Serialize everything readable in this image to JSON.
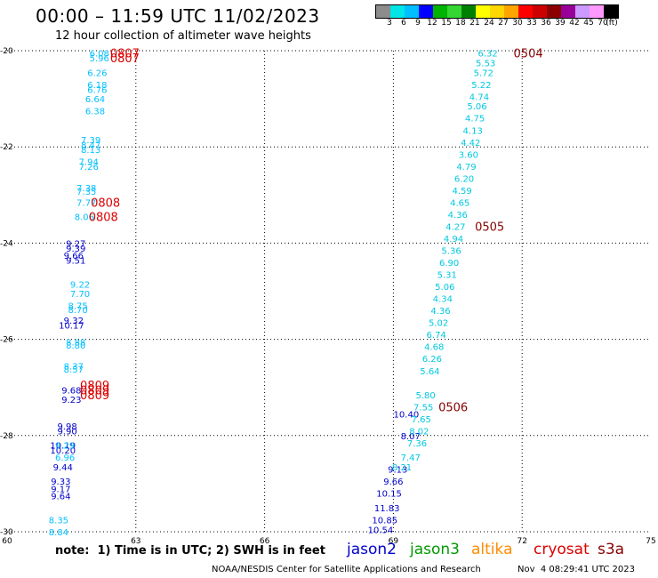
{
  "title": "00:00 – 11:59 UTC 11/02/2023",
  "subtitle": "12 hour collection of altimeter wave heights",
  "colorbar": {
    "labels": [
      "3",
      "6",
      "9",
      "12",
      "15",
      "18",
      "21",
      "24",
      "27",
      "30",
      "33",
      "36",
      "39",
      "42",
      "45",
      "70",
      "(ft)"
    ],
    "colors": [
      "#8c8c8c",
      "#00e5e5",
      "#00bfff",
      "#0000ff",
      "#00b300",
      "#33d633",
      "#008000",
      "#ffff00",
      "#ffd700",
      "#ffa500",
      "#ff0000",
      "#cc0000",
      "#8b0000",
      "#990099",
      "#cc99ff",
      "#ff99ff",
      "#000000"
    ]
  },
  "note": "note:  1) Time is in UTC; 2) SWH is in feet",
  "satellites": [
    {
      "name": "jason2",
      "color": "#0000cc"
    },
    {
      "name": "jason3",
      "color": "#009900"
    },
    {
      "name": "altika",
      "color": "#ff8c00"
    },
    {
      "name": "cryosat",
      "color": "#dd0000"
    },
    {
      "name": "s3a",
      "color": "#880000"
    }
  ],
  "footer_org": "NOAA/NESDIS Center for Satellite Applications and Research",
  "footer_timestamp": "Nov  4 08:29:41 UTC 2023",
  "chart_data": {
    "type": "scatter",
    "xlim": [
      60,
      75
    ],
    "ylim": [
      -30,
      -20
    ],
    "x_ticks": [
      "60",
      "63",
      "66",
      "69",
      "72",
      "75"
    ],
    "y_ticks": [
      "-20",
      "-22",
      "-24",
      "-26",
      "-28",
      "-30"
    ],
    "grid": true,
    "series": [
      {
        "name": "jason2",
        "color": "#0000cc",
        "points": [
          {
            "x": 61.6,
            "y": -24.0,
            "label": "9.27"
          },
          {
            "x": 61.6,
            "y": -24.1,
            "label": "9.39"
          },
          {
            "x": 61.55,
            "y": -24.25,
            "label": "9.66"
          },
          {
            "x": 61.6,
            "y": -24.35,
            "label": "9.51"
          },
          {
            "x": 61.55,
            "y": -25.6,
            "label": "9.32"
          },
          {
            "x": 61.5,
            "y": -25.7,
            "label": "10.17"
          },
          {
            "x": 61.5,
            "y": -27.05,
            "label": "9.68"
          },
          {
            "x": 61.5,
            "y": -27.25,
            "label": "9.23"
          },
          {
            "x": 61.4,
            "y": -27.8,
            "label": "9.98"
          },
          {
            "x": 61.4,
            "y": -27.9,
            "label": "9.90"
          },
          {
            "x": 61.3,
            "y": -28.2,
            "label": "10.19"
          },
          {
            "x": 61.3,
            "y": -28.3,
            "label": "10.20"
          },
          {
            "x": 61.3,
            "y": -28.65,
            "label": "9.44"
          },
          {
            "x": 61.25,
            "y": -28.95,
            "label": "9.33"
          },
          {
            "x": 61.25,
            "y": -29.1,
            "label": "9.17"
          },
          {
            "x": 61.25,
            "y": -29.25,
            "label": "9.64"
          },
          {
            "x": 69.3,
            "y": -27.55,
            "label": "10.40"
          },
          {
            "x": 69.4,
            "y": -28.0,
            "label": "8.07"
          },
          {
            "x": 69.1,
            "y": -28.7,
            "label": "9.13"
          },
          {
            "x": 69.0,
            "y": -28.95,
            "label": "9.66"
          },
          {
            "x": 68.9,
            "y": -29.2,
            "label": "10.15"
          },
          {
            "x": 68.85,
            "y": -29.5,
            "label": "11.83"
          },
          {
            "x": 68.8,
            "y": -29.75,
            "label": "10.85"
          },
          {
            "x": 68.7,
            "y": -29.95,
            "label": "10.54"
          }
        ]
      },
      {
        "name": "altika",
        "color": "#00bfff",
        "points": [
          {
            "x": 62.15,
            "y": -20.05,
            "label": "6.08"
          },
          {
            "x": 62.15,
            "y": -20.15,
            "label": "5.96"
          },
          {
            "x": 62.1,
            "y": -20.45,
            "label": "6.26"
          },
          {
            "x": 62.1,
            "y": -20.7,
            "label": "6.18"
          },
          {
            "x": 62.1,
            "y": -20.8,
            "label": "6.76"
          },
          {
            "x": 62.05,
            "y": -21.0,
            "label": "6.64"
          },
          {
            "x": 62.05,
            "y": -21.25,
            "label": "6.38"
          },
          {
            "x": 61.95,
            "y": -21.85,
            "label": "7.39"
          },
          {
            "x": 61.95,
            "y": -21.95,
            "label": "8.47"
          },
          {
            "x": 61.95,
            "y": -22.05,
            "label": "8.13"
          },
          {
            "x": 61.9,
            "y": -22.3,
            "label": "7.94"
          },
          {
            "x": 61.9,
            "y": -22.4,
            "label": "7.26"
          },
          {
            "x": 61.85,
            "y": -22.85,
            "label": "7.38"
          },
          {
            "x": 61.85,
            "y": -22.92,
            "label": "7.35"
          },
          {
            "x": 61.85,
            "y": -23.15,
            "label": "7.77"
          },
          {
            "x": 61.8,
            "y": -23.45,
            "label": "8.06"
          },
          {
            "x": 61.7,
            "y": -24.85,
            "label": "9.22"
          },
          {
            "x": 61.7,
            "y": -25.05,
            "label": "7.70"
          },
          {
            "x": 61.65,
            "y": -25.3,
            "label": "8.75"
          },
          {
            "x": 61.65,
            "y": -25.38,
            "label": "8.70"
          },
          {
            "x": 61.6,
            "y": -26.05,
            "label": "8.88"
          },
          {
            "x": 61.6,
            "y": -26.12,
            "label": "8.80"
          },
          {
            "x": 61.55,
            "y": -26.55,
            "label": "8.37"
          },
          {
            "x": 61.55,
            "y": -26.62,
            "label": "8.57"
          },
          {
            "x": 61.35,
            "y": -28.2,
            "label": "9.29"
          },
          {
            "x": 61.35,
            "y": -28.45,
            "label": "6.96"
          },
          {
            "x": 61.2,
            "y": -29.75,
            "label": "8.35"
          },
          {
            "x": 61.2,
            "y": -30.0,
            "label": "8.84"
          }
        ]
      },
      {
        "name": "jason3 / s3a (cyan)",
        "color": "#00c8e0",
        "points": [
          {
            "x": 71.2,
            "y": -20.05,
            "label": "6.32"
          },
          {
            "x": 71.15,
            "y": -20.25,
            "label": "5.53"
          },
          {
            "x": 71.1,
            "y": -20.45,
            "label": "5.72"
          },
          {
            "x": 71.05,
            "y": -20.7,
            "label": "5.22"
          },
          {
            "x": 71.0,
            "y": -20.95,
            "label": "4.74"
          },
          {
            "x": 70.95,
            "y": -21.15,
            "label": "5.06"
          },
          {
            "x": 70.9,
            "y": -21.4,
            "label": "4.75"
          },
          {
            "x": 70.85,
            "y": -21.65,
            "label": "4.13"
          },
          {
            "x": 70.8,
            "y": -21.9,
            "label": "4.42"
          },
          {
            "x": 70.75,
            "y": -22.15,
            "label": "3.60"
          },
          {
            "x": 70.7,
            "y": -22.4,
            "label": "4.79"
          },
          {
            "x": 70.65,
            "y": -22.65,
            "label": "6.20"
          },
          {
            "x": 70.6,
            "y": -22.9,
            "label": "4.59"
          },
          {
            "x": 70.55,
            "y": -23.15,
            "label": "4.65"
          },
          {
            "x": 70.5,
            "y": -23.4,
            "label": "4.36"
          },
          {
            "x": 70.45,
            "y": -23.65,
            "label": "4.27"
          },
          {
            "x": 70.4,
            "y": -23.9,
            "label": "4.94"
          },
          {
            "x": 70.35,
            "y": -24.15,
            "label": "5.36"
          },
          {
            "x": 70.3,
            "y": -24.4,
            "label": "6.90"
          },
          {
            "x": 70.25,
            "y": -24.65,
            "label": "5.31"
          },
          {
            "x": 70.2,
            "y": -24.9,
            "label": "5.06"
          },
          {
            "x": 70.15,
            "y": -25.15,
            "label": "4.34"
          },
          {
            "x": 70.1,
            "y": -25.4,
            "label": "4.36"
          },
          {
            "x": 70.05,
            "y": -25.65,
            "label": "5.02"
          },
          {
            "x": 70.0,
            "y": -25.9,
            "label": "6.74"
          },
          {
            "x": 69.95,
            "y": -26.15,
            "label": "4.68"
          },
          {
            "x": 69.9,
            "y": -26.4,
            "label": "6.26"
          },
          {
            "x": 69.85,
            "y": -26.65,
            "label": "5.64"
          },
          {
            "x": 69.75,
            "y": -27.15,
            "label": "5.80"
          },
          {
            "x": 69.7,
            "y": -27.4,
            "label": "7.55"
          },
          {
            "x": 69.65,
            "y": -27.65,
            "label": "7.65"
          },
          {
            "x": 69.6,
            "y": -27.9,
            "label": "8.02"
          },
          {
            "x": 69.55,
            "y": -28.15,
            "label": "7.36"
          },
          {
            "x": 69.4,
            "y": -28.45,
            "label": "7.47"
          },
          {
            "x": 69.2,
            "y": -28.65,
            "label": "8.21"
          }
        ]
      }
    ],
    "time_labels": [
      {
        "x": 62.4,
        "y": -20.05,
        "label": "0807",
        "color": "#dd0000"
      },
      {
        "x": 62.4,
        "y": -20.15,
        "label": "0807",
        "color": "#dd0000"
      },
      {
        "x": 61.95,
        "y": -23.15,
        "label": "0808",
        "color": "#dd0000"
      },
      {
        "x": 61.9,
        "y": -23.45,
        "label": "0808",
        "color": "#dd0000"
      },
      {
        "x": 61.7,
        "y": -26.95,
        "label": "0809",
        "color": "#dd0000"
      },
      {
        "x": 61.7,
        "y": -27.05,
        "label": "0809",
        "color": "#dd0000"
      },
      {
        "x": 61.7,
        "y": -27.15,
        "label": "0809",
        "color": "#dd0000"
      },
      {
        "x": 71.8,
        "y": -20.05,
        "label": "0504",
        "color": "#880000"
      },
      {
        "x": 70.9,
        "y": -23.65,
        "label": "0505",
        "color": "#880000"
      },
      {
        "x": 70.05,
        "y": -27.4,
        "label": "0506",
        "color": "#880000"
      }
    ]
  }
}
